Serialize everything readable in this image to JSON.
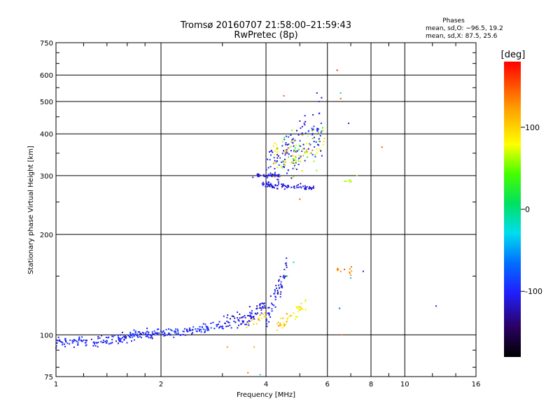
{
  "chart_data": {
    "type": "scatter",
    "title": "Tromsø 20160707 21:58:00–21:59:43",
    "subtitle": "RwPretec (8p)",
    "stats": {
      "heading": "Phases",
      "line_o": "mean, sd,O: −96.5, 19.2",
      "line_x": "mean, sd,X:  87.5, 25.6"
    },
    "xlabel": "Frequency [MHz]",
    "ylabel": "Stationary phase Virtual Height [km]",
    "x_scale": "log",
    "y_scale": "log",
    "xlim": [
      1,
      16
    ],
    "ylim": [
      75,
      750
    ],
    "xticks": [
      1,
      2,
      4,
      6,
      8,
      10,
      16
    ],
    "yticks": [
      75,
      100,
      200,
      300,
      400,
      500,
      600,
      750
    ],
    "grid_x": [
      2,
      4,
      6,
      8,
      10
    ],
    "grid_y": [
      100,
      200,
      300,
      400,
      500,
      600
    ],
    "colorbar": {
      "label": "[deg]",
      "range": [
        -180,
        180
      ],
      "ticks": [
        100,
        0,
        -100
      ]
    },
    "clusters": [
      {
        "f0": 1.0,
        "f1": 1.7,
        "h0": 95,
        "h1": 100,
        "n": 130,
        "phase": -100,
        "spread": 0.018,
        "shape": "exp",
        "k": 3.0,
        "phase_var": 10
      },
      {
        "f0": 1.7,
        "f1": 3.0,
        "h0": 100,
        "h1": 108,
        "n": 140,
        "phase": -100,
        "spread": 0.016,
        "shape": "exp",
        "k": 2.0,
        "phase_var": 10
      },
      {
        "f0": 3.0,
        "f1": 4.0,
        "h0": 108,
        "h1": 125,
        "n": 90,
        "phase": -110,
        "spread": 0.025,
        "shape": "exp",
        "k": 2.5,
        "phase_var": 12
      },
      {
        "f0": 4.0,
        "f1": 4.6,
        "h0": 110,
        "h1": 160,
        "n": 60,
        "phase": -110,
        "spread": 0.04,
        "shape": "lin",
        "k": 1,
        "phase_var": 15
      },
      {
        "f0": 4.3,
        "f1": 5.2,
        "h0": 105,
        "h1": 125,
        "n": 45,
        "phase": 95,
        "spread": 0.02,
        "shape": "lin",
        "k": 1,
        "phase_var": 18
      },
      {
        "f0": 3.5,
        "f1": 4.0,
        "h0": 107,
        "h1": 115,
        "n": 15,
        "phase": 110,
        "spread": 0.015,
        "shape": "lin",
        "k": 1,
        "phase_var": 20
      },
      {
        "f0": 3.65,
        "f1": 4.4,
        "h0": 300,
        "h1": 300,
        "n": 35,
        "phase": -110,
        "spread": 0.006,
        "shape": "lin",
        "k": 1,
        "phase_var": 10
      },
      {
        "f0": 3.9,
        "f1": 5.5,
        "h0": 282,
        "h1": 275,
        "n": 70,
        "phase": -110,
        "spread": 0.008,
        "shape": "lin",
        "k": 1,
        "phase_var": 10
      },
      {
        "f0": 4.0,
        "f1": 5.8,
        "h0": 310,
        "h1": 420,
        "n": 150,
        "phase": -105,
        "spread": 0.09,
        "shape": "lin",
        "k": 1,
        "phase_var": 15
      },
      {
        "f0": 4.2,
        "f1": 5.9,
        "h0": 330,
        "h1": 380,
        "n": 90,
        "phase": 80,
        "spread": 0.08,
        "shape": "lin",
        "k": 1,
        "phase_var": 30
      },
      {
        "f0": 6.3,
        "f1": 7.3,
        "h0": 155,
        "h1": 155,
        "n": 12,
        "phase": 130,
        "spread": 0.01,
        "shape": "lin",
        "k": 1,
        "phase_var": 15
      },
      {
        "f0": 6.7,
        "f1": 7.1,
        "h0": 288,
        "h1": 290,
        "n": 6,
        "phase": 60,
        "spread": 0.01,
        "shape": "lin",
        "k": 1,
        "phase_var": 5
      }
    ],
    "points": [
      {
        "f": 6.4,
        "h": 620,
        "phase": 170
      },
      {
        "f": 8.6,
        "h": 365,
        "phase": 150
      },
      {
        "f": 12.3,
        "h": 122,
        "phase": -110
      },
      {
        "f": 7.6,
        "h": 155,
        "phase": -110
      },
      {
        "f": 6.6,
        "h": 100,
        "phase": 140
      },
      {
        "f": 3.1,
        "h": 92,
        "phase": 130
      },
      {
        "f": 3.7,
        "h": 92,
        "phase": 120
      },
      {
        "f": 3.55,
        "h": 77,
        "phase": 140
      },
      {
        "f": 3.85,
        "h": 76,
        "phase": -30
      },
      {
        "f": 4.5,
        "h": 520,
        "phase": 150
      },
      {
        "f": 5.6,
        "h": 530,
        "phase": -110
      },
      {
        "f": 6.55,
        "h": 530,
        "phase": -10
      },
      {
        "f": 6.55,
        "h": 510,
        "phase": 150
      },
      {
        "f": 6.9,
        "h": 430,
        "phase": -110
      },
      {
        "f": 6.5,
        "h": 120,
        "phase": -70
      },
      {
        "f": 4.6,
        "h": 150,
        "phase": 20
      },
      {
        "f": 4.8,
        "h": 165,
        "phase": -20
      },
      {
        "f": 5.0,
        "h": 255,
        "phase": 150
      },
      {
        "f": 7.0,
        "h": 148,
        "phase": -40
      },
      {
        "f": 7.3,
        "h": 300,
        "phase": 90
      }
    ]
  }
}
